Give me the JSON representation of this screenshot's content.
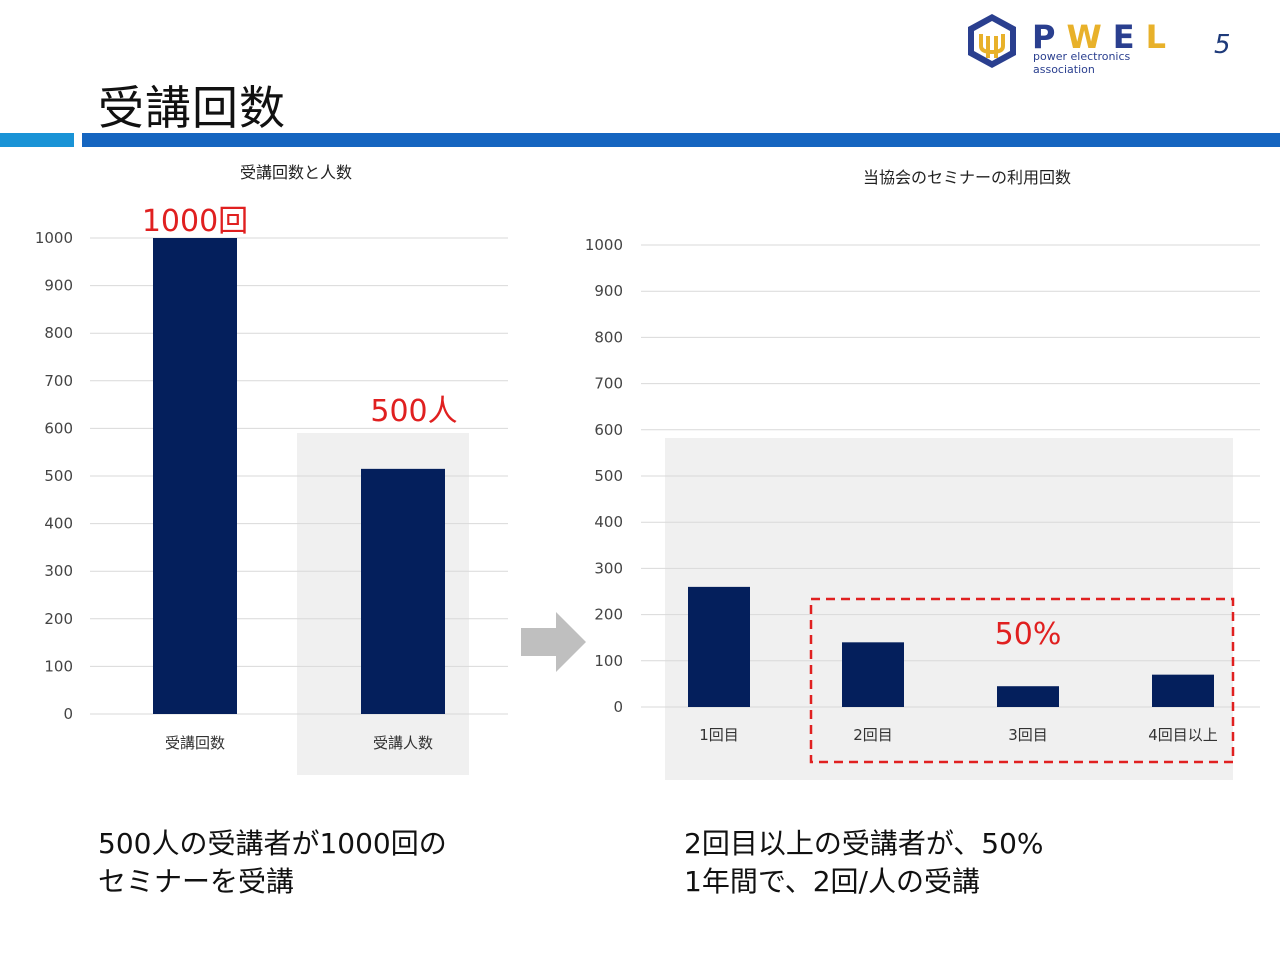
{
  "header": {
    "title": "受講回数",
    "page_number": "5",
    "logo": {
      "letters": [
        "P",
        "W",
        "E",
        "L"
      ],
      "subtitle": "power electronics association"
    }
  },
  "colors": {
    "bar": "#041f5c",
    "accent_blue": "#1565c0",
    "accent_light": "#1a93d6",
    "highlight_red": "#e02020",
    "grid": "#d9d9d9",
    "shade": "#f0f0f0",
    "arrow": "#bfbfbf"
  },
  "chart_data": [
    {
      "type": "bar",
      "title": "受講回数と人数",
      "categories": [
        "受講回数",
        "受講人数"
      ],
      "values": [
        1000,
        515
      ],
      "ylim": [
        0,
        1000
      ],
      "yticks": [
        0,
        100,
        200,
        300,
        400,
        500,
        600,
        700,
        800,
        900,
        1000
      ],
      "grid": true,
      "annotations": [
        {
          "text": "1000回",
          "category": "受講回数"
        },
        {
          "text": "500人",
          "category": "受講人数"
        }
      ]
    },
    {
      "type": "bar",
      "title": "当協会のセミナーの利用回数",
      "categories": [
        "1回目",
        "2回目",
        "3回目",
        "4回目以上"
      ],
      "values": [
        260,
        140,
        45,
        70
      ],
      "ylim": [
        0,
        1000
      ],
      "yticks": [
        0,
        100,
        200,
        300,
        400,
        500,
        600,
        700,
        800,
        900,
        1000
      ],
      "grid": true,
      "annotations": [
        {
          "text": "50%",
          "categories": [
            "2回目",
            "3回目",
            "4回目以上"
          ]
        }
      ]
    }
  ],
  "captions": {
    "left": [
      "500人の受講者が1000回の",
      "セミナーを受講"
    ],
    "right": [
      "2回目以上の受講者が、50%",
      "1年間で、2回/人の受講"
    ]
  }
}
